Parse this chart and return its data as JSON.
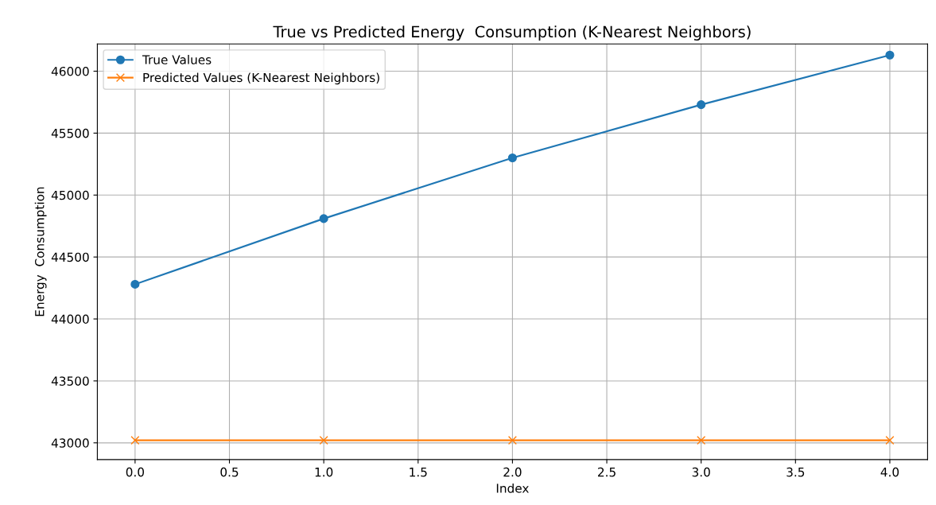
{
  "chart_data": {
    "type": "line",
    "title": "True vs Predicted Energy  Consumption (K-Nearest Neighbors)",
    "xlabel": "Index",
    "ylabel": "Energy  Consumption",
    "x": [
      0,
      1,
      2,
      3,
      4
    ],
    "series": [
      {
        "name": "True Values",
        "color": "#1f77b4",
        "marker": "circle",
        "values": [
          44280,
          44810,
          45300,
          45730,
          46130
        ]
      },
      {
        "name": "Predicted Values (K-Nearest Neighbors)",
        "color": "#ff7f0e",
        "marker": "cross",
        "values": [
          43020,
          43020,
          43020,
          43020,
          43020
        ]
      }
    ],
    "xlim": [
      -0.2,
      4.2
    ],
    "xticks": [
      {
        "value": 0,
        "label": "0.0"
      },
      {
        "value": 0.5,
        "label": "0.5"
      },
      {
        "value": 1,
        "label": "1.0"
      },
      {
        "value": 1.5,
        "label": "1.5"
      },
      {
        "value": 2,
        "label": "2.0"
      },
      {
        "value": 2.5,
        "label": "2.5"
      },
      {
        "value": 3,
        "label": "3.0"
      },
      {
        "value": 3.5,
        "label": "3.5"
      },
      {
        "value": 4,
        "label": "4.0"
      }
    ],
    "ylim": [
      42865,
      46220
    ],
    "yticks": [
      43000,
      43500,
      44000,
      44500,
      45000,
      45500,
      46000
    ],
    "grid": true,
    "legend": "top left"
  }
}
